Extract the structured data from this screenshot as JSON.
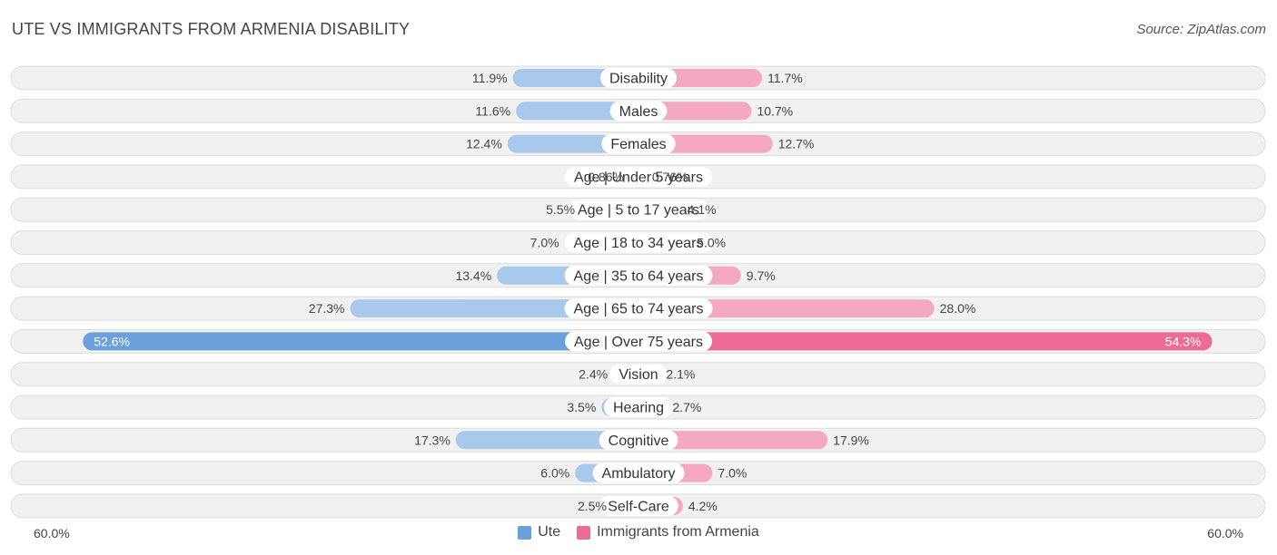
{
  "header": {
    "title": "UTE VS IMMIGRANTS FROM ARMENIA DISABILITY",
    "source": "Source: ZipAtlas.com"
  },
  "colors": {
    "left_light": "#a8c8ec",
    "left_strong": "#6aa0dc",
    "right_light": "#f5a8c2",
    "right_strong": "#ef6b97",
    "row_bg": "#f1f1f1",
    "row_border": "#dcdcdc"
  },
  "chart_data": {
    "type": "bar",
    "orientation": "horizontal-diverging",
    "title": "UTE VS IMMIGRANTS FROM ARMENIA DISABILITY",
    "categories": [
      "Disability",
      "Males",
      "Females",
      "Age | Under 5 years",
      "Age | 5 to 17 years",
      "Age | 18 to 34 years",
      "Age | 35 to 64 years",
      "Age | 65 to 74 years",
      "Age | Over 75 years",
      "Vision",
      "Hearing",
      "Cognitive",
      "Ambulatory",
      "Self-Care"
    ],
    "series": [
      {
        "name": "Ute",
        "values": [
          11.9,
          11.6,
          12.4,
          0.86,
          5.5,
          7.0,
          13.4,
          27.3,
          52.6,
          2.4,
          3.5,
          17.3,
          6.0,
          2.5
        ],
        "labels": [
          "11.9%",
          "11.6%",
          "12.4%",
          "0.86%",
          "5.5%",
          "7.0%",
          "13.4%",
          "27.3%",
          "52.6%",
          "2.4%",
          "3.5%",
          "17.3%",
          "6.0%",
          "2.5%"
        ]
      },
      {
        "name": "Immigrants from Armenia",
        "values": [
          11.7,
          10.7,
          12.7,
          0.76,
          4.1,
          5.0,
          9.7,
          28.0,
          54.3,
          2.1,
          2.7,
          17.9,
          7.0,
          4.2
        ],
        "labels": [
          "11.7%",
          "10.7%",
          "12.7%",
          "0.76%",
          "4.1%",
          "5.0%",
          "9.7%",
          "28.0%",
          "54.3%",
          "2.1%",
          "2.7%",
          "17.9%",
          "7.0%",
          "4.2%"
        ]
      }
    ],
    "xlim": [
      -60,
      60
    ],
    "axis_left_label": "60.0%",
    "axis_right_label": "60.0%",
    "legend_position": "bottom-center"
  }
}
